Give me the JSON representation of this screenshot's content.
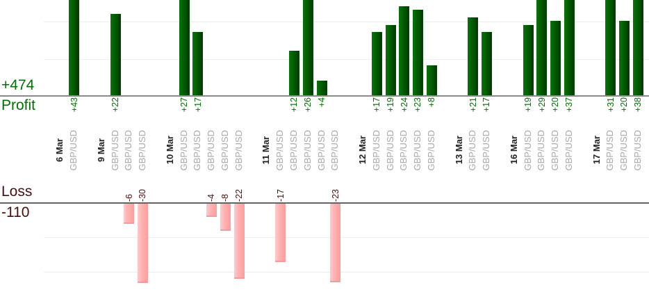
{
  "summary": {
    "profit_total": "+474",
    "profit_label": "Profit",
    "loss_label": "Loss",
    "loss_total": "-110"
  },
  "colors": {
    "profit_bar": "#006400",
    "profit_text": "#007000",
    "loss_bar": "#ffb3b3",
    "loss_text": "#4a0d0d",
    "date_text": "#222222",
    "instrument_text": "#a8a8a8",
    "profit_axis_line": "#8a8a8a",
    "loss_axis_line": "#636363",
    "gridline": "#ededed"
  },
  "chart_data": {
    "type": "bar",
    "title": "",
    "ylabel_top": "Profit",
    "ylabel_bottom": "Loss",
    "totals": {
      "profit": 474,
      "loss": -110
    },
    "gridline_step": 10,
    "legend_position": "none",
    "groups": [
      {
        "date": "6 Mar",
        "trades": [
          {
            "instrument": "GBP/USD",
            "value": 43,
            "display": "+43"
          }
        ]
      },
      {
        "date": "9 Mar",
        "trades": [
          {
            "instrument": "GBP/USD",
            "value": 22,
            "display": "+22"
          },
          {
            "instrument": "GBP/USD",
            "value": -6,
            "display": "-6"
          },
          {
            "instrument": "GBP/USD",
            "value": -30,
            "display": "-30"
          }
        ]
      },
      {
        "date": "10 Mar",
        "trades": [
          {
            "instrument": "GBP/USD",
            "value": 27,
            "display": "+27"
          },
          {
            "instrument": "GBP/USD",
            "value": 17,
            "display": "+17"
          },
          {
            "instrument": "GBP/USD",
            "value": -4,
            "display": "-4"
          },
          {
            "instrument": "GBP/USD",
            "value": -8,
            "display": "-8"
          },
          {
            "instrument": "GBP/USD",
            "value": -22,
            "display": "-22"
          }
        ]
      },
      {
        "date": "11 Mar",
        "trades": [
          {
            "instrument": "GBP/USD",
            "value": -17,
            "display": "-17"
          },
          {
            "instrument": "GBP/USD",
            "value": 12,
            "display": "+12"
          },
          {
            "instrument": "GBP/USD",
            "value": 26,
            "display": "+26"
          },
          {
            "instrument": "GBP/USD",
            "value": 4,
            "display": "+4"
          },
          {
            "instrument": "GBP/USD",
            "value": -23,
            "display": "-23"
          }
        ]
      },
      {
        "date": "12 Mar",
        "trades": [
          {
            "instrument": "GBP/USD",
            "value": 17,
            "display": "+17"
          },
          {
            "instrument": "GBP/USD",
            "value": 19,
            "display": "+19"
          },
          {
            "instrument": "GBP/USD",
            "value": 24,
            "display": "+24"
          },
          {
            "instrument": "GBP/USD",
            "value": 23,
            "display": "+23"
          },
          {
            "instrument": "GBP/USD",
            "value": 8,
            "display": "+8"
          }
        ]
      },
      {
        "date": "13 Mar",
        "trades": [
          {
            "instrument": "GBP/USD",
            "value": 21,
            "display": "+21"
          },
          {
            "instrument": "GBP/USD",
            "value": 17,
            "display": "+17"
          }
        ]
      },
      {
        "date": "16 Mar",
        "trades": [
          {
            "instrument": "GBP/USD",
            "value": 19,
            "display": "+19"
          },
          {
            "instrument": "GBP/USD",
            "value": 29,
            "display": "+29"
          },
          {
            "instrument": "GBP/USD",
            "value": 20,
            "display": "+20"
          },
          {
            "instrument": "GBP/USD",
            "value": 37,
            "display": "+37"
          }
        ]
      },
      {
        "date": "17 Mar",
        "trades": [
          {
            "instrument": "GBP/USD",
            "value": 31,
            "display": "+31"
          },
          {
            "instrument": "GBP/USD",
            "value": 20,
            "display": "+20"
          },
          {
            "instrument": "GBP/USD",
            "value": 38,
            "display": "+38"
          }
        ]
      }
    ]
  }
}
